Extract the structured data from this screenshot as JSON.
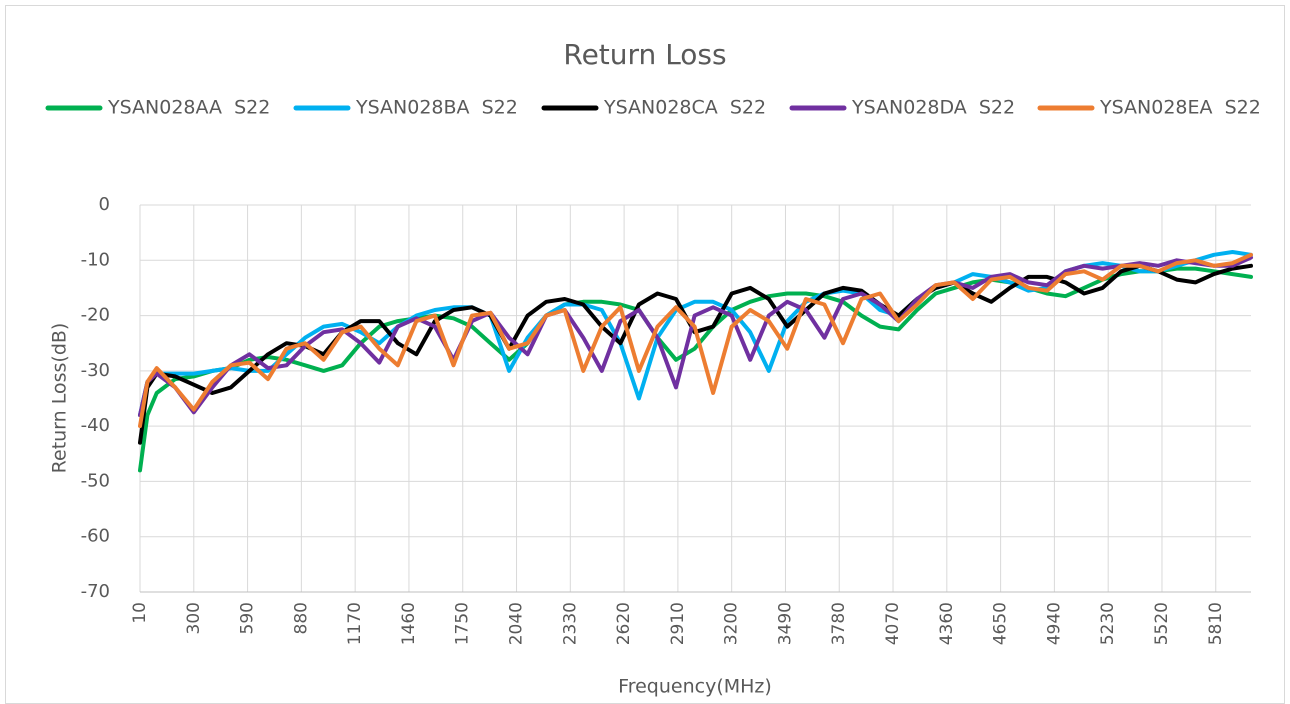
{
  "chart_data": {
    "type": "line",
    "title": "Return Loss",
    "xlabel": "Frequency(MHz)",
    "ylabel": "Return Loss(dB)",
    "legend": "top",
    "grid": true,
    "xlim": [
      10,
      6000
    ],
    "ylim": [
      -70,
      0
    ],
    "xticks": [
      10,
      300,
      590,
      880,
      1170,
      1460,
      1750,
      2040,
      2330,
      2620,
      2910,
      3200,
      3490,
      3780,
      4070,
      4360,
      4650,
      4940,
      5230,
      5520,
      5810
    ],
    "yticks": [
      0,
      -10,
      -20,
      -30,
      -40,
      -50,
      -60,
      -70
    ],
    "x": [
      10,
      50,
      100,
      200,
      300,
      400,
      500,
      600,
      700,
      800,
      900,
      1000,
      1100,
      1200,
      1300,
      1400,
      1500,
      1600,
      1700,
      1800,
      1900,
      2000,
      2100,
      2200,
      2300,
      2400,
      2500,
      2600,
      2700,
      2800,
      2900,
      3000,
      3100,
      3200,
      3300,
      3400,
      3500,
      3600,
      3700,
      3800,
      3900,
      4000,
      4100,
      4200,
      4300,
      4400,
      4500,
      4600,
      4700,
      4800,
      4900,
      5000,
      5100,
      5200,
      5300,
      5400,
      5500,
      5600,
      5700,
      5800,
      5900,
      6000
    ],
    "series": [
      {
        "name": "YSAN028AA  S22",
        "color": "#00b050",
        "values": [
          -48,
          -38,
          -34,
          -31.5,
          -31,
          -30,
          -29.5,
          -28,
          -27.5,
          -28,
          -29,
          -30,
          -29,
          -25,
          -22,
          -21,
          -20.5,
          -20,
          -20.5,
          -22,
          -25,
          -28,
          -25,
          -20,
          -18,
          -17.5,
          -17.5,
          -18,
          -19,
          -24,
          -28,
          -26,
          -22,
          -19,
          -17.5,
          -16.5,
          -16,
          -16,
          -16.5,
          -17.5,
          -20,
          -22,
          -22.5,
          -19,
          -16,
          -15,
          -14,
          -13.5,
          -14,
          -15,
          -16,
          -16.5,
          -15,
          -13.5,
          -12.5,
          -12,
          -12,
          -11.5,
          -11.5,
          -12,
          -12.5,
          -13
        ]
      },
      {
        "name": "YSAN028BA  S22",
        "color": "#00b0f0",
        "values": [
          -38,
          -32,
          -30.5,
          -30.5,
          -30.5,
          -30,
          -29.5,
          -30,
          -30,
          -27,
          -24,
          -22,
          -21.5,
          -23,
          -25,
          -22,
          -20,
          -19,
          -18.5,
          -18.5,
          -20,
          -30,
          -24,
          -20,
          -18,
          -18,
          -19,
          -25,
          -35,
          -24,
          -19,
          -17.5,
          -17.5,
          -19,
          -23,
          -30,
          -21,
          -17.5,
          -16,
          -15.5,
          -16,
          -19,
          -20,
          -17,
          -15,
          -14,
          -12.5,
          -13,
          -14,
          -15.5,
          -15,
          -12,
          -11,
          -10.5,
          -11,
          -12,
          -12,
          -11,
          -10,
          -9,
          -8.5,
          -9
        ]
      },
      {
        "name": "YSAN028CA  S22",
        "color": "#000000",
        "values": [
          -43,
          -33,
          -30.5,
          -31,
          -32.5,
          -34,
          -33,
          -30,
          -27,
          -25,
          -25.5,
          -27,
          -23,
          -21,
          -21,
          -25,
          -27,
          -21,
          -19,
          -18.5,
          -20,
          -26,
          -20,
          -17.5,
          -17,
          -18,
          -22,
          -25,
          -18,
          -16,
          -17,
          -23,
          -22,
          -16,
          -15,
          -17,
          -22,
          -19,
          -16,
          -15,
          -15.5,
          -18,
          -20,
          -17,
          -15,
          -14,
          -16,
          -17.5,
          -15,
          -13,
          -13,
          -14,
          -16,
          -15,
          -12,
          -11,
          -12,
          -13.5,
          -14,
          -12.5,
          -11.5,
          -11
        ]
      },
      {
        "name": "YSAN028DA  S22",
        "color": "#7030a0",
        "values": [
          -38,
          -32,
          -30.5,
          -33,
          -37.5,
          -33,
          -29,
          -27,
          -29.5,
          -29,
          -25.5,
          -23,
          -22.5,
          -25,
          -28.5,
          -22,
          -20.5,
          -22,
          -28,
          -21,
          -19.5,
          -24,
          -27,
          -20,
          -19,
          -24,
          -30,
          -21,
          -19,
          -24,
          -33,
          -20,
          -18.5,
          -20,
          -28,
          -20,
          -17.5,
          -19,
          -24,
          -17,
          -16,
          -18,
          -21,
          -17,
          -14.5,
          -14,
          -15,
          -13,
          -12.5,
          -14,
          -14.5,
          -12,
          -11,
          -11.5,
          -11,
          -10.5,
          -11,
          -10,
          -10.5,
          -11,
          -11,
          -9.5
        ]
      },
      {
        "name": "YSAN028EA  S22",
        "color": "#ed7d31",
        "values": [
          -40,
          -32,
          -29.5,
          -33,
          -37,
          -32,
          -29,
          -28.5,
          -31.5,
          -26,
          -25,
          -28,
          -23,
          -22,
          -26,
          -29,
          -21,
          -20,
          -29,
          -20,
          -19.5,
          -26,
          -25,
          -20,
          -19,
          -30,
          -22,
          -18.5,
          -30,
          -22,
          -18.5,
          -22,
          -34,
          -22,
          -19,
          -21,
          -26,
          -17,
          -18,
          -25,
          -17,
          -16,
          -21,
          -18,
          -14.5,
          -14,
          -17,
          -13.5,
          -13,
          -15,
          -15.5,
          -12.5,
          -12,
          -13.5,
          -11,
          -11,
          -12,
          -10.5,
          -10,
          -11,
          -10.5,
          -9
        ]
      }
    ]
  }
}
